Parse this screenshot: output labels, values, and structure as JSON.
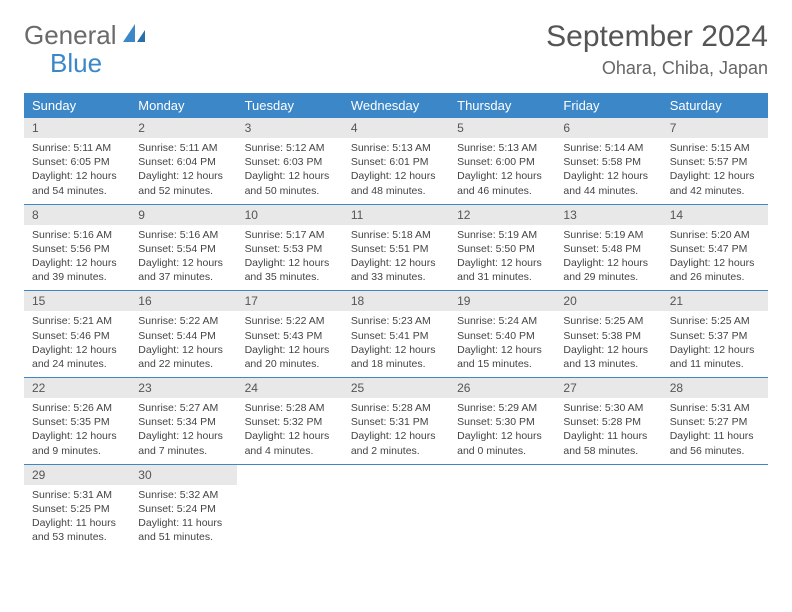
{
  "brand": {
    "part1": "General",
    "part2": "Blue"
  },
  "title": "September 2024",
  "location": "Ohara, Chiba, Japan",
  "colors": {
    "header_bg": "#3b87c8",
    "header_text": "#ffffff",
    "daynum_bg": "#e8e8e8",
    "border": "#3b87c8",
    "title_color": "#555555",
    "body_text": "#444444"
  },
  "weekdays": [
    "Sunday",
    "Monday",
    "Tuesday",
    "Wednesday",
    "Thursday",
    "Friday",
    "Saturday"
  ],
  "weeks": [
    [
      {
        "n": "1",
        "sr": "5:11 AM",
        "ss": "6:05 PM",
        "dl": "12 hours and 54 minutes."
      },
      {
        "n": "2",
        "sr": "5:11 AM",
        "ss": "6:04 PM",
        "dl": "12 hours and 52 minutes."
      },
      {
        "n": "3",
        "sr": "5:12 AM",
        "ss": "6:03 PM",
        "dl": "12 hours and 50 minutes."
      },
      {
        "n": "4",
        "sr": "5:13 AM",
        "ss": "6:01 PM",
        "dl": "12 hours and 48 minutes."
      },
      {
        "n": "5",
        "sr": "5:13 AM",
        "ss": "6:00 PM",
        "dl": "12 hours and 46 minutes."
      },
      {
        "n": "6",
        "sr": "5:14 AM",
        "ss": "5:58 PM",
        "dl": "12 hours and 44 minutes."
      },
      {
        "n": "7",
        "sr": "5:15 AM",
        "ss": "5:57 PM",
        "dl": "12 hours and 42 minutes."
      }
    ],
    [
      {
        "n": "8",
        "sr": "5:16 AM",
        "ss": "5:56 PM",
        "dl": "12 hours and 39 minutes."
      },
      {
        "n": "9",
        "sr": "5:16 AM",
        "ss": "5:54 PM",
        "dl": "12 hours and 37 minutes."
      },
      {
        "n": "10",
        "sr": "5:17 AM",
        "ss": "5:53 PM",
        "dl": "12 hours and 35 minutes."
      },
      {
        "n": "11",
        "sr": "5:18 AM",
        "ss": "5:51 PM",
        "dl": "12 hours and 33 minutes."
      },
      {
        "n": "12",
        "sr": "5:19 AM",
        "ss": "5:50 PM",
        "dl": "12 hours and 31 minutes."
      },
      {
        "n": "13",
        "sr": "5:19 AM",
        "ss": "5:48 PM",
        "dl": "12 hours and 29 minutes."
      },
      {
        "n": "14",
        "sr": "5:20 AM",
        "ss": "5:47 PM",
        "dl": "12 hours and 26 minutes."
      }
    ],
    [
      {
        "n": "15",
        "sr": "5:21 AM",
        "ss": "5:46 PM",
        "dl": "12 hours and 24 minutes."
      },
      {
        "n": "16",
        "sr": "5:22 AM",
        "ss": "5:44 PM",
        "dl": "12 hours and 22 minutes."
      },
      {
        "n": "17",
        "sr": "5:22 AM",
        "ss": "5:43 PM",
        "dl": "12 hours and 20 minutes."
      },
      {
        "n": "18",
        "sr": "5:23 AM",
        "ss": "5:41 PM",
        "dl": "12 hours and 18 minutes."
      },
      {
        "n": "19",
        "sr": "5:24 AM",
        "ss": "5:40 PM",
        "dl": "12 hours and 15 minutes."
      },
      {
        "n": "20",
        "sr": "5:25 AM",
        "ss": "5:38 PM",
        "dl": "12 hours and 13 minutes."
      },
      {
        "n": "21",
        "sr": "5:25 AM",
        "ss": "5:37 PM",
        "dl": "12 hours and 11 minutes."
      }
    ],
    [
      {
        "n": "22",
        "sr": "5:26 AM",
        "ss": "5:35 PM",
        "dl": "12 hours and 9 minutes."
      },
      {
        "n": "23",
        "sr": "5:27 AM",
        "ss": "5:34 PM",
        "dl": "12 hours and 7 minutes."
      },
      {
        "n": "24",
        "sr": "5:28 AM",
        "ss": "5:32 PM",
        "dl": "12 hours and 4 minutes."
      },
      {
        "n": "25",
        "sr": "5:28 AM",
        "ss": "5:31 PM",
        "dl": "12 hours and 2 minutes."
      },
      {
        "n": "26",
        "sr": "5:29 AM",
        "ss": "5:30 PM",
        "dl": "12 hours and 0 minutes."
      },
      {
        "n": "27",
        "sr": "5:30 AM",
        "ss": "5:28 PM",
        "dl": "11 hours and 58 minutes."
      },
      {
        "n": "28",
        "sr": "5:31 AM",
        "ss": "5:27 PM",
        "dl": "11 hours and 56 minutes."
      }
    ],
    [
      {
        "n": "29",
        "sr": "5:31 AM",
        "ss": "5:25 PM",
        "dl": "11 hours and 53 minutes."
      },
      {
        "n": "30",
        "sr": "5:32 AM",
        "ss": "5:24 PM",
        "dl": "11 hours and 51 minutes."
      },
      null,
      null,
      null,
      null,
      null
    ]
  ],
  "labels": {
    "sunrise": "Sunrise: ",
    "sunset": "Sunset: ",
    "daylight": "Daylight: "
  }
}
